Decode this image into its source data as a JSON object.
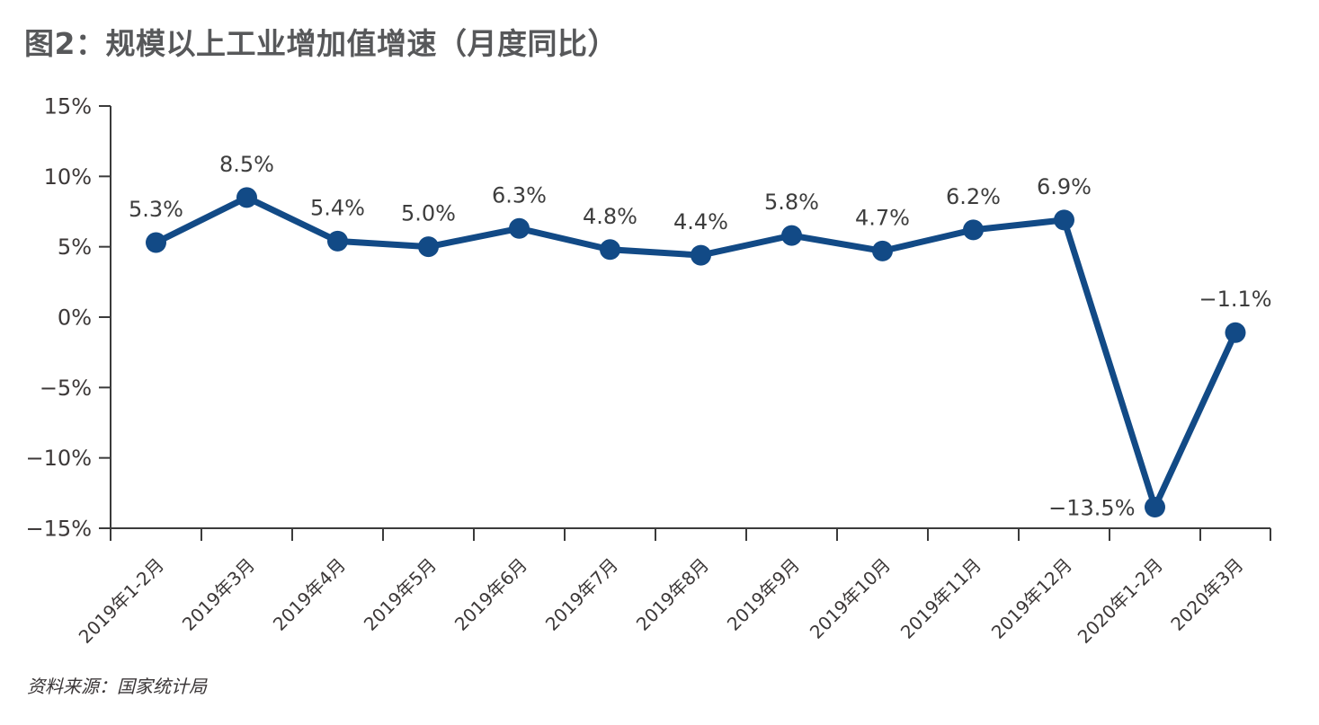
{
  "chart_data": {
    "type": "line",
    "title": "图2：规模以上工业增加值增速（月度同比）",
    "categories": [
      "2019年1-2月",
      "2019年3月",
      "2019年4月",
      "2019年5月",
      "2019年6月",
      "2019年7月",
      "2019年8月",
      "2019年9月",
      "2019年10月",
      "2019年11月",
      "2019年12月",
      "2020年1-2月",
      "2020年3月"
    ],
    "values": [
      5.3,
      8.5,
      5.4,
      5.0,
      6.3,
      4.8,
      4.4,
      5.8,
      4.7,
      6.2,
      6.9,
      -13.5,
      -1.1
    ],
    "data_labels": [
      "5.3%",
      "8.5%",
      "5.4%",
      "5.0%",
      "6.3%",
      "4.8%",
      "4.4%",
      "5.8%",
      "4.7%",
      "6.2%",
      "6.9%",
      "−13.5%",
      "−1.1%"
    ],
    "label_positions": [
      "above",
      "above",
      "above",
      "above",
      "above",
      "above",
      "above",
      "above",
      "above",
      "above",
      "above",
      "left",
      "above"
    ],
    "y_ticks": [
      15,
      10,
      5,
      0,
      -5,
      -10,
      -15
    ],
    "y_tick_labels": [
      "15%",
      "10%",
      "5%",
      "0%",
      "−5%",
      "−10%",
      "−15%"
    ],
    "ylim": [
      -15,
      15
    ],
    "xlabel": "",
    "ylabel": "",
    "grid": false,
    "legend": "none",
    "marker": "circle"
  },
  "source_note": "资料来源：国家统计局",
  "colors": {
    "line": "#124a86",
    "axis": "#3b3b3b",
    "tick_text": "#3c3838",
    "label_text": "#3d3d3d",
    "title": "#57585a"
  }
}
